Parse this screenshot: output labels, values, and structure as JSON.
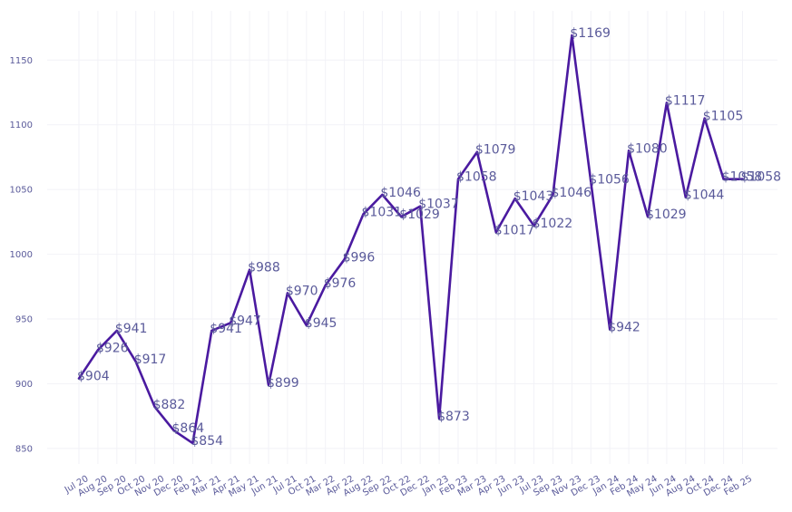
{
  "chart_data": {
    "type": "line",
    "title": "",
    "xlabel": "",
    "ylabel": "",
    "ylim": [
      838,
      1188
    ],
    "yticks": [
      850,
      900,
      950,
      1000,
      1050,
      1100,
      1150
    ],
    "grid": true,
    "line_color": "#4a1aa0",
    "text_color": "#5a5a9a",
    "x": [
      "Jul 20",
      "Aug 20",
      "Sep 20",
      "Oct 20",
      "Nov 20",
      "Dec 20",
      "Feb 21",
      "Mar 21",
      "Apr 21",
      "May 21",
      "Jun 21",
      "Jul 21",
      "Oct 21",
      "Mar 22",
      "Apr 22",
      "Aug 22",
      "Sep 22",
      "Oct 22",
      "Dec 22",
      "Jan 23",
      "Feb 23",
      "Mar 23",
      "Apr 23",
      "Jun 23",
      "Jul 23",
      "Sep 23",
      "Nov 23",
      "Dec 23",
      "Jan 24",
      "Feb 24",
      "May 24",
      "Jun 24",
      "Aug 24",
      "Oct 24",
      "Dec 24",
      "Feb 25"
    ],
    "values": [
      904,
      926,
      941,
      917,
      882,
      864,
      854,
      941,
      947,
      988,
      899,
      970,
      945,
      976,
      996,
      1031,
      1046,
      1029,
      1037,
      873,
      1058,
      1079,
      1017,
      1043,
      1022,
      1046,
      1169,
      1056,
      942,
      1080,
      1029,
      1117,
      1044,
      1105,
      1058,
      1058
    ],
    "labels": [
      "$904",
      "$926",
      "$941",
      "$917",
      "$882",
      "$864",
      "$854",
      "$941",
      "$947",
      "$988",
      "$899",
      "$970",
      "$945",
      "$976",
      "$996",
      "$1031",
      "$1046",
      "$1029",
      "$1037",
      "$873",
      "$1058",
      "$1079",
      "$1017",
      "$1043",
      "$1022",
      "$1046",
      "$1169",
      "$1056",
      "$942",
      "$1080",
      "$1029",
      "$1117",
      "$1044",
      "$1105",
      "$1058",
      "$1058"
    ]
  }
}
